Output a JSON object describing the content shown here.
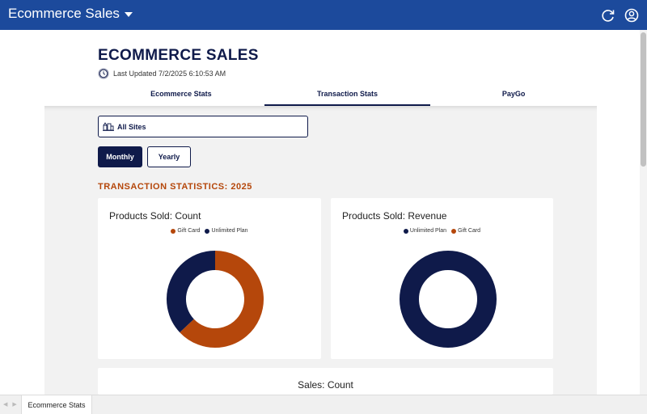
{
  "appbar": {
    "title": "Ecommerce Sales",
    "refresh_icon": "refresh-icon",
    "account_icon": "user-circle-icon"
  },
  "header": {
    "title": "ECOMMERCE SALES",
    "last_updated": "Last Updated 7/2/2025 6:10:53 AM"
  },
  "tabs": [
    {
      "label": "Ecommerce Stats",
      "active": false
    },
    {
      "label": "Transaction Stats",
      "active": true
    },
    {
      "label": "PayGo",
      "active": false
    }
  ],
  "filter": {
    "site_label": "All Sites",
    "site_icon": "sites-icon"
  },
  "period": {
    "monthly_label": "Monthly",
    "yearly_label": "Yearly",
    "selected": "Monthly"
  },
  "section_title": "TRANSACTION STATISTICS: 2025",
  "colors": {
    "gift_card": "#b5470b",
    "unlimited_plan": "#0f1a4a",
    "appbar": "#1c4a9c",
    "section_title": "#b5470b"
  },
  "chart_data": [
    {
      "type": "pie",
      "title": "Products Sold: Count",
      "legend": [
        "Gift Card",
        "Unlimited Plan"
      ],
      "categories": [
        "Gift Card",
        "Unlimited Plan"
      ],
      "values": [
        63,
        37
      ],
      "legend_position": "top"
    },
    {
      "type": "pie",
      "title": "Products Sold: Revenue",
      "legend": [
        "Unlimited Plan",
        "Gift Card"
      ],
      "categories": [
        "Unlimited Plan",
        "Gift Card"
      ],
      "values": [
        100,
        0
      ],
      "legend_position": "top"
    },
    {
      "type": "bar",
      "title": "Sales: Count"
    }
  ],
  "sheet": {
    "tab_label": "Ecommerce Stats"
  }
}
